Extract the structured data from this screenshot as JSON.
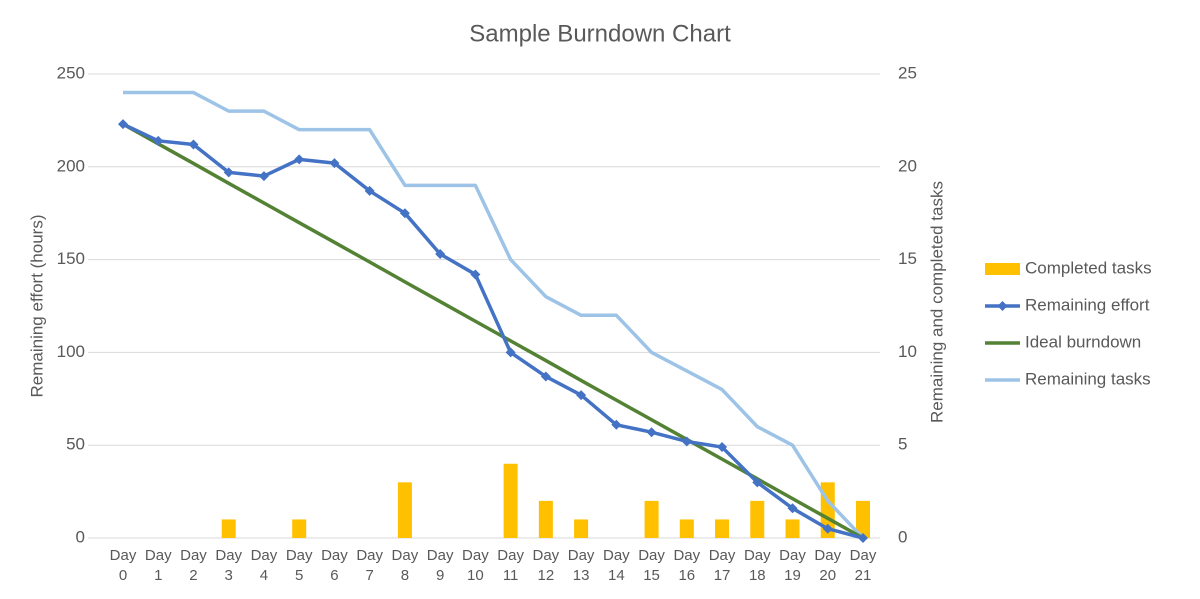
{
  "chart_data": {
    "type": "line",
    "title": "Sample Burndown Chart",
    "ylabel": "Remaining effort (hours)",
    "y2label": "Remaining and completed tasks",
    "categories": [
      "Day 0",
      "Day 1",
      "Day 2",
      "Day 3",
      "Day 4",
      "Day 5",
      "Day 6",
      "Day 7",
      "Day 8",
      "Day 9",
      "Day 10",
      "Day 11",
      "Day 12",
      "Day 13",
      "Day 14",
      "Day 15",
      "Day 16",
      "Day 17",
      "Day 18",
      "Day 19",
      "Day 20",
      "Day 21"
    ],
    "ylim": [
      0,
      250
    ],
    "yticks": [
      0,
      50,
      100,
      150,
      200,
      250
    ],
    "y2lim": [
      0,
      25
    ],
    "y2ticks": [
      0,
      5,
      10,
      15,
      20,
      25
    ],
    "grid": true,
    "legend": "right",
    "series": [
      {
        "name": "Completed tasks",
        "type": "bar",
        "axis": "y2",
        "color": "#ffc000",
        "values": [
          0,
          0,
          0,
          1,
          0,
          1,
          0,
          0,
          3,
          0,
          0,
          4,
          2,
          1,
          0,
          2,
          1,
          1,
          2,
          1,
          3,
          2
        ]
      },
      {
        "name": "Remaining effort",
        "type": "line",
        "marker": "diamond",
        "color": "#4472c4",
        "values": [
          223,
          214,
          212,
          197,
          195,
          204,
          202,
          187,
          175,
          153,
          142,
          100,
          87,
          77,
          61,
          57,
          52,
          49,
          30,
          16,
          5,
          0
        ]
      },
      {
        "name": "Ideal burndown",
        "type": "line",
        "color": "#548235",
        "values": [
          223,
          212.4,
          201.8,
          191.1,
          180.5,
          169.9,
          159.3,
          148.7,
          138,
          127.4,
          116.8,
          106.2,
          95.6,
          84.9,
          74.3,
          63.7,
          53.1,
          42.5,
          31.9,
          21.2,
          10.6,
          0
        ]
      },
      {
        "name": "Remaining tasks",
        "type": "line",
        "axis": "y2",
        "color": "#9dc3e6",
        "values": [
          24,
          24,
          24,
          23,
          23,
          22,
          22,
          22,
          19,
          19,
          19,
          15,
          13,
          12,
          12,
          10,
          9,
          8,
          6,
          5,
          2,
          0
        ]
      }
    ]
  }
}
